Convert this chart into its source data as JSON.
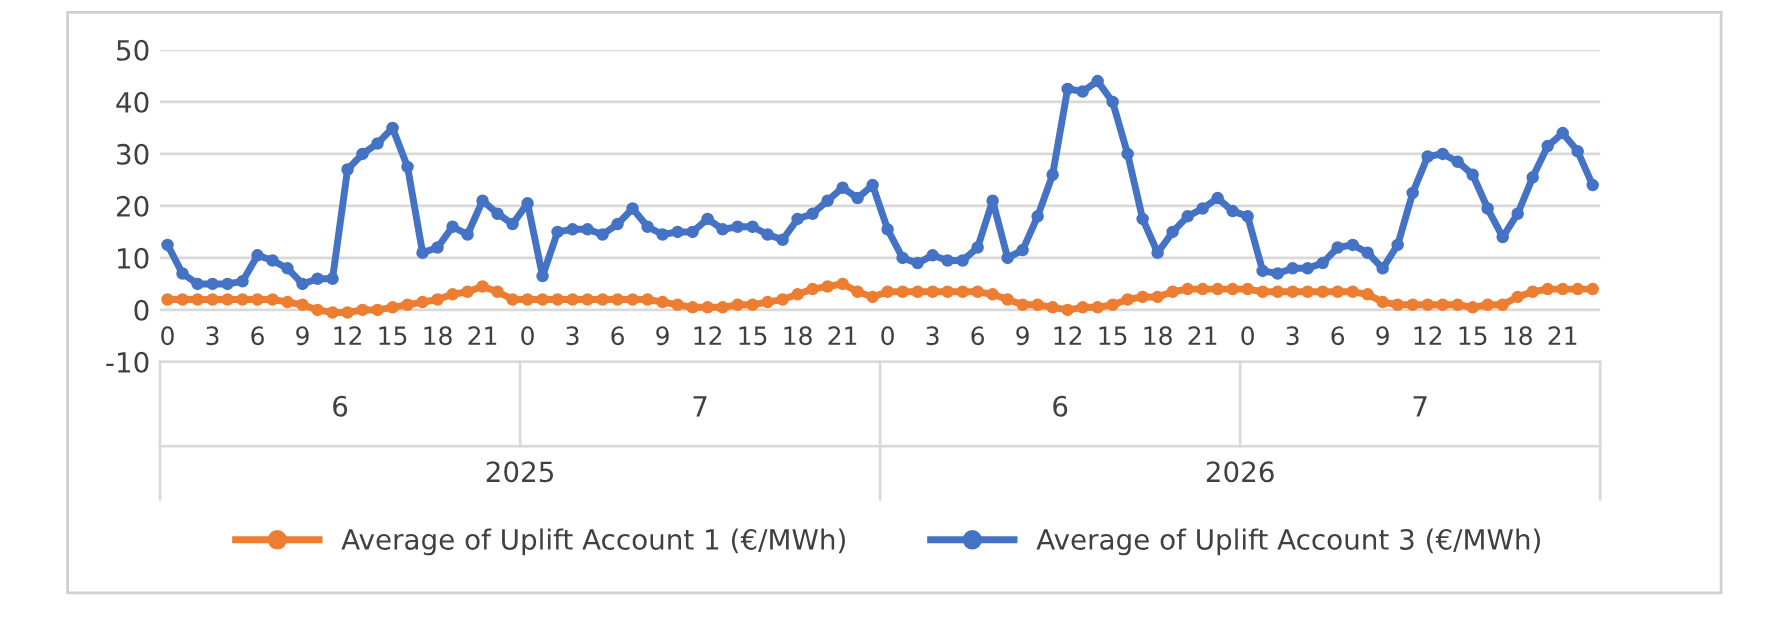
{
  "chart_data": {
    "type": "line",
    "categories": [
      "0",
      null,
      null,
      "3",
      null,
      null,
      "6",
      null,
      null,
      "9",
      null,
      null,
      "12",
      null,
      null,
      "15",
      null,
      null,
      "18",
      null,
      null,
      "21",
      null,
      null,
      "0",
      null,
      null,
      "3",
      null,
      null,
      "6",
      null,
      null,
      "9",
      null,
      null,
      "12",
      null,
      null,
      "15",
      null,
      null,
      "18",
      null,
      null,
      "21",
      null,
      null,
      "0",
      null,
      null,
      "3",
      null,
      null,
      "6",
      null,
      null,
      "9",
      null,
      null,
      "12",
      null,
      null,
      "15",
      null,
      null,
      "18",
      null,
      null,
      "21",
      null,
      null,
      "0",
      null,
      null,
      "3",
      null,
      null,
      "6",
      null,
      null,
      "9",
      null,
      null,
      "12",
      null,
      null,
      "15",
      null,
      null,
      "18",
      null,
      null,
      "21",
      null,
      null
    ],
    "series": [
      {
        "name": "Average of Uplift Account 1 (€/MWh)",
        "color": "#ed7d31",
        "values": [
          2,
          2,
          2,
          2,
          2,
          2,
          2,
          2,
          1.5,
          1,
          0,
          -0.5,
          -0.5,
          0,
          0,
          0.5,
          1,
          1.5,
          2,
          3,
          3.5,
          4.5,
          3.5,
          2,
          2,
          2,
          2,
          2,
          2,
          2,
          2,
          2,
          2,
          1.5,
          1,
          0.5,
          0.5,
          0.5,
          1,
          1,
          1.5,
          2,
          3,
          4,
          4.5,
          5,
          3.5,
          2.5,
          3.5,
          3.5,
          3.5,
          3.5,
          3.5,
          3.5,
          3.5,
          3,
          2,
          1,
          1,
          0.5,
          0,
          0.5,
          0.5,
          1,
          2,
          2.5,
          2.5,
          3.5,
          4,
          4,
          4,
          4,
          4,
          3.5,
          3.5,
          3.5,
          3.5,
          3.5,
          3.5,
          3.5,
          3,
          1.5,
          1,
          1,
          1,
          1,
          1,
          0.5,
          1,
          1,
          2.5,
          3.5,
          4,
          4,
          4,
          4
        ]
      },
      {
        "name": "Average of Uplift Account 3 (€/MWh)",
        "color": "#4472c4",
        "values": [
          12.5,
          7,
          5,
          5,
          5,
          5.5,
          10.5,
          9.5,
          8,
          5,
          6,
          6,
          27,
          30,
          32,
          35,
          27.5,
          11,
          12,
          16,
          14.5,
          21,
          18.5,
          16.5,
          20.5,
          6.5,
          15,
          15.5,
          15.5,
          14.5,
          16.5,
          19.5,
          16,
          14.5,
          15,
          15,
          17.5,
          15.5,
          16,
          16,
          14.5,
          13.5,
          17.5,
          18.5,
          21,
          23.5,
          21.5,
          24,
          15.5,
          10,
          9,
          10.5,
          9.5,
          9.5,
          12,
          21,
          10,
          11.5,
          18,
          26,
          42.5,
          42,
          44,
          40,
          30,
          17.5,
          11,
          15,
          18,
          19.5,
          21.5,
          19,
          18,
          7.5,
          7,
          8,
          8,
          9,
          12,
          12.5,
          11,
          8,
          12.5,
          22.5,
          29.5,
          30,
          28.5,
          26,
          19.5,
          14,
          18.5,
          25.5,
          31.5,
          34,
          30.5,
          24
        ]
      }
    ],
    "ylim": [
      -10,
      50
    ],
    "yticks": [
      -10,
      0,
      10,
      20,
      30,
      40,
      50
    ],
    "grid": "y",
    "legend": "bottom",
    "marker": "circle",
    "line_style": "solid",
    "annotations": [
      "6",
      "7",
      "6",
      "7",
      "2025",
      "2026"
    ]
  }
}
